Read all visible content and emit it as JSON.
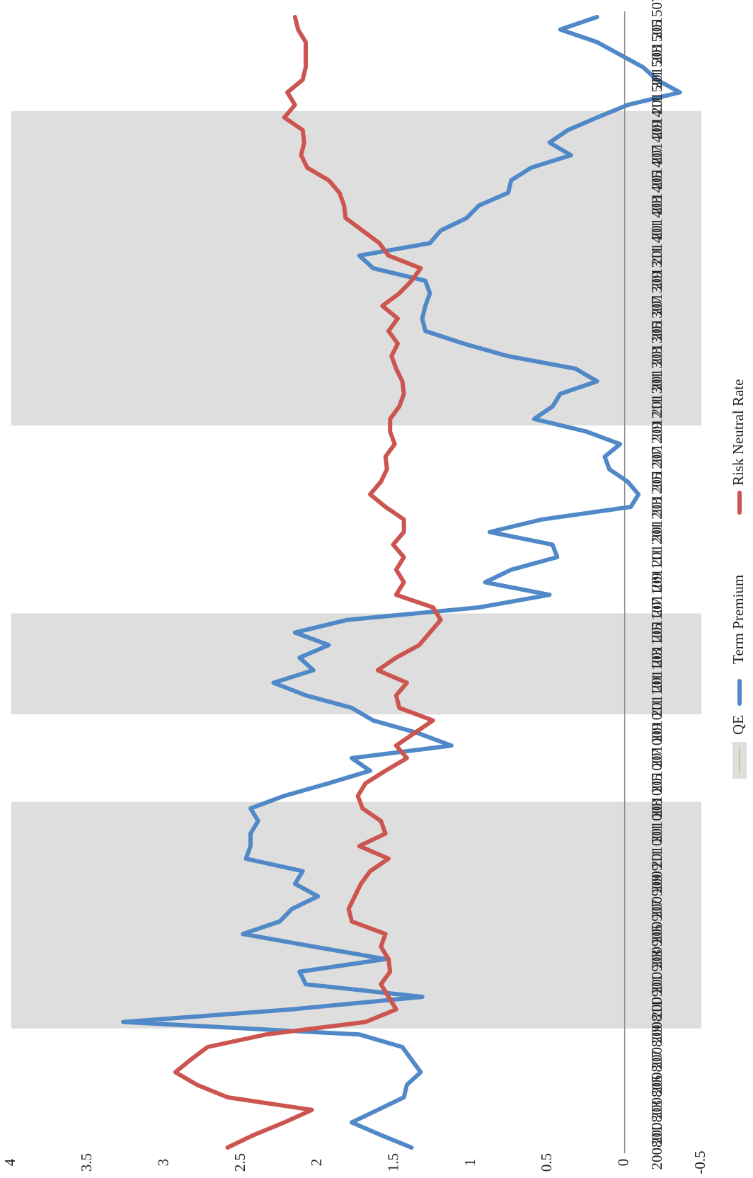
{
  "chart_data": {
    "type": "line",
    "categories": [
      "200801",
      null,
      "200803",
      null,
      "200805",
      null,
      "200807",
      null,
      "200809",
      null,
      "200811",
      null,
      "200901",
      null,
      "200903",
      null,
      "200905",
      null,
      "200907",
      null,
      "200909",
      null,
      "200911",
      null,
      "201001",
      null,
      "201003",
      null,
      "201005",
      null,
      "201007",
      null,
      "201009",
      null,
      "201011",
      null,
      "201101",
      null,
      "201103",
      null,
      "201105",
      null,
      "201107",
      null,
      "201109",
      null,
      "201111",
      null,
      "201201",
      null,
      "201203",
      null,
      "201205",
      null,
      "201207",
      null,
      "201209",
      null,
      "201211",
      null,
      "201301",
      null,
      "201303",
      null,
      "201305",
      null,
      "201307",
      null,
      "201309",
      null,
      "201311",
      null,
      "201401",
      null,
      "201403",
      null,
      "201405",
      null,
      "201407",
      null,
      "201409",
      null,
      "201411",
      null,
      "201501",
      null,
      "201503",
      null,
      "201505",
      null,
      "201507"
    ],
    "series": [
      {
        "name": "QE",
        "type": "bar",
        "color": "#dedede",
        "values": [
          null,
          null,
          null,
          null,
          null,
          null,
          null,
          null,
          null,
          null,
          4,
          4,
          4,
          4,
          4,
          4,
          4,
          4,
          4,
          4,
          4,
          4,
          4,
          4,
          4,
          4,
          4,
          4,
          null,
          null,
          null,
          null,
          null,
          null,
          null,
          4,
          4,
          4,
          4,
          4,
          4,
          4,
          4,
          null,
          null,
          null,
          null,
          null,
          null,
          null,
          null,
          null,
          null,
          null,
          null,
          null,
          null,
          null,
          4,
          4,
          4,
          4,
          4,
          4,
          4,
          4,
          4,
          4,
          4,
          4,
          4,
          4,
          4,
          4,
          4,
          4,
          4,
          4,
          4,
          4,
          4,
          4,
          4,
          null,
          null,
          null,
          null,
          null,
          null,
          null,
          null
        ]
      },
      {
        "name": "Term Premium",
        "type": "line",
        "color": "#5088c8",
        "values": [
          1.39,
          1.59,
          1.78,
          1.61,
          1.44,
          1.42,
          1.33,
          1.39,
          1.45,
          1.73,
          3.27,
          2.17,
          1.32,
          2.08,
          2.12,
          1.56,
          2.03,
          2.49,
          2.25,
          2.17,
          2.0,
          2.15,
          2.1,
          2.47,
          2.44,
          2.44,
          2.39,
          2.44,
          2.22,
          1.93,
          1.66,
          1.78,
          1.13,
          1.35,
          1.64,
          1.78,
          2.08,
          2.29,
          2.03,
          2.12,
          1.93,
          2.15,
          1.81,
          0.95,
          0.49,
          0.91,
          0.74,
          0.44,
          0.47,
          0.88,
          0.54,
          -0.04,
          -0.09,
          -0.02,
          0.1,
          0.13,
          0.03,
          0.25,
          0.59,
          0.47,
          0.42,
          0.18,
          0.32,
          0.76,
          1.05,
          1.3,
          1.32,
          1.3,
          1.27,
          1.3,
          1.64,
          1.73,
          1.27,
          1.2,
          1.03,
          0.95,
          0.76,
          0.74,
          0.61,
          0.35,
          0.49,
          0.37,
          0.18,
          -0.02,
          -0.36,
          -0.21,
          -0.12,
          0.03,
          0.18,
          0.42,
          0.18
        ]
      },
      {
        "name": "Risk Neutral Rate",
        "type": "line",
        "color": "#cc5550",
        "values": [
          2.59,
          2.42,
          2.22,
          2.04,
          2.59,
          2.79,
          2.93,
          2.83,
          2.72,
          2.34,
          1.69,
          1.49,
          1.54,
          1.59,
          1.53,
          1.54,
          1.59,
          1.56,
          1.78,
          1.8,
          1.76,
          1.72,
          1.66,
          1.54,
          1.73,
          1.56,
          1.59,
          1.71,
          1.74,
          1.69,
          1.56,
          1.42,
          1.49,
          1.37,
          1.25,
          1.47,
          1.49,
          1.42,
          1.61,
          1.49,
          1.34,
          1.27,
          1.2,
          1.25,
          1.49,
          1.44,
          1.49,
          1.44,
          1.51,
          1.44,
          1.44,
          1.56,
          1.66,
          1.59,
          1.55,
          1.56,
          1.5,
          1.53,
          1.53,
          1.47,
          1.44,
          1.45,
          1.49,
          1.52,
          1.48,
          1.54,
          1.48,
          1.58,
          1.47,
          1.39,
          1.33,
          1.54,
          1.6,
          1.71,
          1.82,
          1.83,
          1.86,
          1.93,
          2.07,
          2.11,
          2.09,
          2.1,
          2.22,
          2.15,
          2.2,
          2.1,
          2.08,
          2.08,
          2.08,
          2.13,
          2.15
        ]
      }
    ],
    "ylim": [
      -0.5,
      4
    ],
    "yticks": [
      -0.5,
      0,
      0.5,
      1,
      1.5,
      2,
      2.5,
      3,
      3.5,
      4
    ],
    "grid": false,
    "legend": "right"
  }
}
